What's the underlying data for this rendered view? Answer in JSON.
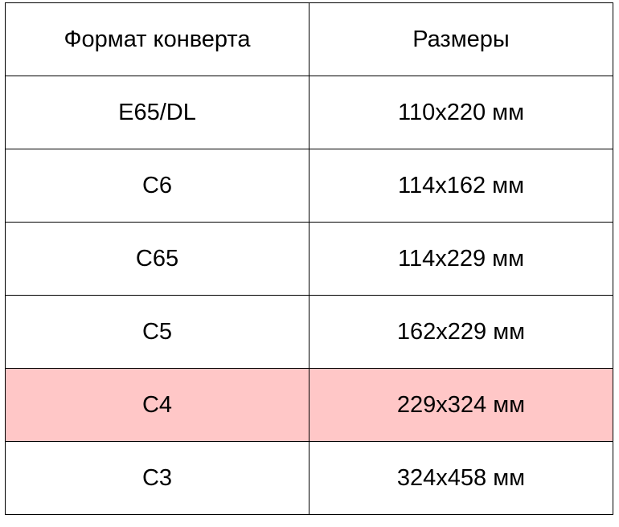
{
  "table": {
    "headers": [
      "Формат конверта",
      "Размеры"
    ],
    "highlight_color": "#ffc7c7",
    "rows": [
      {
        "format": "E65/DL",
        "size": "110x220 мм",
        "highlighted": false
      },
      {
        "format": "C6",
        "size": "114x162 мм",
        "highlighted": false
      },
      {
        "format": "C65",
        "size": "114x229 мм",
        "highlighted": false
      },
      {
        "format": "C5",
        "size": "162x229 мм",
        "highlighted": false
      },
      {
        "format": "C4",
        "size": "229x324 мм",
        "highlighted": true
      },
      {
        "format": "C3",
        "size": "324x458 мм",
        "highlighted": false
      }
    ]
  }
}
